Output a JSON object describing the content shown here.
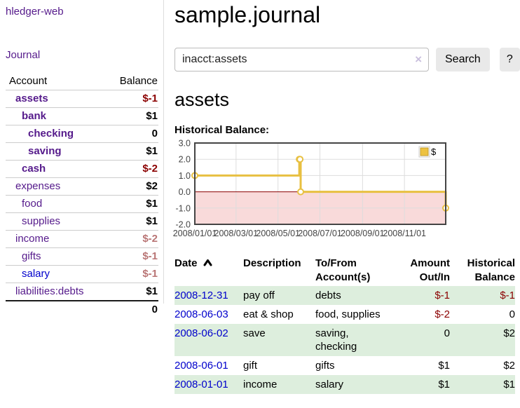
{
  "app": {
    "title": "hledger-web"
  },
  "sidebar": {
    "journal_label": "Journal",
    "accounts_table": {
      "headers": {
        "account": "Account",
        "balance": "Balance"
      },
      "rows": [
        {
          "name": "assets",
          "balance": "$-1",
          "indent": 0,
          "bold": true,
          "link_color": "purple",
          "balance_class": "neg-strong"
        },
        {
          "name": "bank",
          "balance": "$1",
          "indent": 1,
          "bold": true,
          "link_color": "purple",
          "balance_class": ""
        },
        {
          "name": "checking",
          "balance": "0",
          "indent": 2,
          "bold": true,
          "link_color": "purple",
          "balance_class": ""
        },
        {
          "name": "saving",
          "balance": "$1",
          "indent": 2,
          "bold": true,
          "link_color": "purple",
          "balance_class": ""
        },
        {
          "name": "cash",
          "balance": "$-2",
          "indent": 1,
          "bold": true,
          "link_color": "purple",
          "balance_class": "neg-strong"
        },
        {
          "name": "expenses",
          "balance": "$2",
          "indent": 0,
          "bold": false,
          "link_color": "purple",
          "balance_class": ""
        },
        {
          "name": "food",
          "balance": "$1",
          "indent": 1,
          "bold": false,
          "link_color": "purple",
          "balance_class": ""
        },
        {
          "name": "supplies",
          "balance": "$1",
          "indent": 1,
          "bold": false,
          "link_color": "purple",
          "balance_class": ""
        },
        {
          "name": "income",
          "balance": "$-2",
          "indent": 0,
          "bold": false,
          "link_color": "purple",
          "balance_class": "neg-soft"
        },
        {
          "name": "gifts",
          "balance": "$-1",
          "indent": 1,
          "bold": false,
          "link_color": "purple",
          "balance_class": "neg-soft"
        },
        {
          "name": "salary",
          "balance": "$-1",
          "indent": 1,
          "bold": false,
          "link_color": "blue",
          "balance_class": "neg-soft"
        },
        {
          "name": "liabilities:debts",
          "balance": "$1",
          "indent": 0,
          "bold": false,
          "link_color": "purple",
          "balance_class": ""
        }
      ],
      "total": "0"
    }
  },
  "header": {
    "title": "sample.journal"
  },
  "search": {
    "query": "inacct:assets",
    "clear_icon": "×",
    "button_label": "Search",
    "help_label": "?"
  },
  "account_page": {
    "heading": "assets",
    "chart_label": "Historical Balance:"
  },
  "chart_data": {
    "type": "line",
    "step": true,
    "title": "Historical Balance",
    "series": [
      {
        "name": "$",
        "color": "#e8c041",
        "points": [
          [
            "2008-01-01",
            1
          ],
          [
            "2008-06-01",
            2
          ],
          [
            "2008-06-02",
            2
          ],
          [
            "2008-06-03",
            0
          ],
          [
            "2008-12-31",
            -1
          ]
        ]
      }
    ],
    "x_range": [
      "2008-01-01",
      "2008-12-31"
    ],
    "x_ticks": [
      "2008/01/01",
      "2008/03/01",
      "2008/05/01",
      "2008/07/01",
      "2008/09/01",
      "2008/11/01"
    ],
    "y_ticks": [
      3,
      2,
      1,
      0,
      -1,
      -2
    ],
    "ylim": [
      -2,
      3
    ],
    "grid": true,
    "grid_color": "#dddddd",
    "border_color": "#444444",
    "zero_line_color": "#8b0000",
    "negative_region_color": "#f9dada",
    "legend": {
      "position": "top-right",
      "label": "$",
      "swatch_color": "#edc240",
      "swatch_border": "#c19b2b"
    }
  },
  "transactions": {
    "headers": {
      "date": "Date",
      "description": "Description",
      "accounts": "To/From Account(s)",
      "amount": "Amount Out/In",
      "balance": "Historical Balance"
    },
    "rows": [
      {
        "date": "2008-12-31",
        "description": "pay off",
        "accounts": [
          "debts"
        ],
        "amount": "$-1",
        "amount_negative": true,
        "balance": "$-1",
        "balance_negative": true
      },
      {
        "date": "2008-06-03",
        "description": "eat & shop",
        "accounts": [
          "food, supplies"
        ],
        "amount": "$-2",
        "amount_negative": true,
        "balance": "0",
        "balance_negative": false
      },
      {
        "date": "2008-06-02",
        "description": "save",
        "accounts": [
          "saving,",
          "checking"
        ],
        "amount": "0",
        "amount_negative": false,
        "balance": "$2",
        "balance_negative": false
      },
      {
        "date": "2008-06-01",
        "description": "gift",
        "accounts": [
          "gifts"
        ],
        "amount": "$1",
        "amount_negative": false,
        "balance": "$2",
        "balance_negative": false
      },
      {
        "date": "2008-01-01",
        "description": "income",
        "accounts": [
          "salary"
        ],
        "amount": "$1",
        "amount_negative": false,
        "balance": "$1",
        "balance_negative": false
      }
    ]
  },
  "colors": {
    "link_purple": "#551a8b",
    "link_blue": "#0000cc",
    "strong_negative": "#8b0000",
    "soft_negative": "#b97575",
    "row_highlight_green": "#ddeedd",
    "button_gray": "#e9e9e9"
  }
}
